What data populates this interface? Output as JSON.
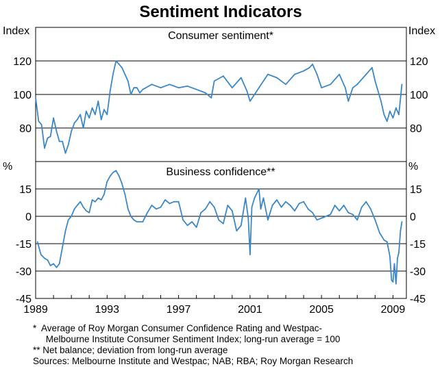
{
  "title": "Sentiment Indicators",
  "styles": {
    "line_color": "#3a87c8",
    "frame_color": "#000000",
    "background": "#ffffff"
  },
  "chart_data": [
    {
      "type": "line",
      "title": "Consumer sentiment*",
      "ylabel_left": "Index",
      "ylabel_right": "Index",
      "ylim": [
        60,
        140
      ],
      "yticks": [
        80,
        100,
        120
      ],
      "xlim": [
        1989,
        2009.75
      ],
      "series": [
        {
          "name": "Consumer sentiment",
          "x": [
            1989.0,
            1989.17,
            1989.33,
            1989.5,
            1989.67,
            1989.83,
            1990.0,
            1990.17,
            1990.33,
            1990.5,
            1990.67,
            1990.83,
            1991.0,
            1991.17,
            1991.33,
            1991.5,
            1991.67,
            1991.83,
            1992.0,
            1992.17,
            1992.33,
            1992.5,
            1992.67,
            1992.83,
            1993.0,
            1993.17,
            1993.33,
            1993.5,
            1993.67,
            1993.83,
            1994.0,
            1994.17,
            1994.33,
            1994.5,
            1994.67,
            1994.83,
            1995.0,
            1995.5,
            1996.0,
            1996.5,
            1997.0,
            1997.5,
            1998.0,
            1998.5,
            1998.83,
            1999.0,
            1999.5,
            2000.0,
            2000.5,
            2000.83,
            2001.0,
            2001.5,
            2002.0,
            2002.5,
            2003.0,
            2003.5,
            2004.0,
            2004.33,
            2004.5,
            2004.75,
            2005.0,
            2005.5,
            2006.0,
            2006.33,
            2006.5,
            2006.75,
            2007.0,
            2007.5,
            2007.83,
            2008.0,
            2008.33,
            2008.5,
            2008.67,
            2008.83,
            2009.0,
            2009.17,
            2009.33,
            2009.5
          ],
          "values": [
            98,
            84,
            82,
            68,
            74,
            75,
            86,
            78,
            72,
            72,
            65,
            70,
            78,
            83,
            85,
            88,
            80,
            90,
            86,
            92,
            88,
            96,
            85,
            91,
            88,
            102,
            112,
            120,
            118,
            116,
            112,
            108,
            100,
            104,
            104,
            101,
            103,
            106,
            104,
            106,
            104,
            105,
            103,
            101,
            98,
            108,
            111,
            104,
            110,
            102,
            96,
            104,
            112,
            110,
            106,
            112,
            114,
            116,
            118,
            112,
            104,
            106,
            112,
            104,
            96,
            104,
            106,
            112,
            116,
            108,
            96,
            88,
            84,
            90,
            86,
            92,
            88,
            106
          ]
        }
      ]
    },
    {
      "type": "line",
      "title": "Business confidence**",
      "ylabel_left": "%",
      "ylabel_right": "%",
      "ylim": [
        -45,
        30
      ],
      "yticks": [
        -45,
        -30,
        -15,
        0,
        15
      ],
      "xlim": [
        1989,
        2009.75
      ],
      "xticks": [
        "1989",
        "1993",
        "1997",
        "2001",
        "2005",
        "2009"
      ],
      "xtick_values": [
        1989,
        1993,
        1997,
        2001,
        2005,
        2009
      ],
      "series": [
        {
          "name": "Business confidence",
          "x": [
            1989.1,
            1989.3,
            1989.5,
            1989.67,
            1989.83,
            1990.0,
            1990.17,
            1990.33,
            1990.5,
            1990.67,
            1990.83,
            1991.0,
            1991.17,
            1991.33,
            1991.5,
            1991.67,
            1991.83,
            1992.0,
            1992.17,
            1992.33,
            1992.5,
            1992.67,
            1992.83,
            1993.0,
            1993.17,
            1993.33,
            1993.5,
            1993.67,
            1993.83,
            1994.0,
            1994.17,
            1994.33,
            1994.5,
            1994.67,
            1994.83,
            1995.0,
            1995.25,
            1995.5,
            1995.75,
            1996.0,
            1996.25,
            1996.5,
            1996.75,
            1997.0,
            1997.25,
            1997.5,
            1997.75,
            1998.0,
            1998.25,
            1998.5,
            1998.75,
            1999.0,
            1999.25,
            1999.5,
            1999.75,
            2000.0,
            2000.25,
            2000.5,
            2000.75,
            2000.9,
            2001.0,
            2001.1,
            2001.25,
            2001.5,
            2001.6,
            2001.75,
            2002.0,
            2002.25,
            2002.5,
            2002.75,
            2003.0,
            2003.25,
            2003.5,
            2003.75,
            2004.0,
            2004.25,
            2004.5,
            2004.75,
            2005.0,
            2005.25,
            2005.5,
            2005.75,
            2006.0,
            2006.25,
            2006.5,
            2006.75,
            2007.0,
            2007.25,
            2007.5,
            2007.75,
            2008.0,
            2008.25,
            2008.5,
            2008.67,
            2008.83,
            2008.92,
            2009.0,
            2009.08,
            2009.17,
            2009.25,
            2009.33,
            2009.42,
            2009.5
          ],
          "values": [
            -14,
            -21,
            -23,
            -24,
            -27,
            -26,
            -28,
            -26,
            -17,
            -8,
            -2,
            0,
            4,
            6,
            8,
            5,
            3,
            2,
            9,
            8,
            10,
            9,
            12,
            19,
            22,
            24,
            25,
            22,
            18,
            12,
            4,
            0,
            -2,
            -3,
            -3,
            -3,
            2,
            6,
            4,
            5,
            9,
            7,
            8,
            8,
            -2,
            -5,
            -3,
            -6,
            2,
            4,
            8,
            5,
            -2,
            -4,
            6,
            3,
            -8,
            -5,
            10,
            -1,
            -21,
            5,
            10,
            15,
            4,
            10,
            -2,
            6,
            9,
            5,
            8,
            6,
            3,
            7,
            8,
            4,
            2,
            -2,
            -1,
            0,
            1,
            6,
            3,
            6,
            2,
            1,
            -2,
            5,
            8,
            4,
            -2,
            -9,
            -13,
            -14,
            -22,
            -35,
            -36,
            -26,
            -37,
            -23,
            -20,
            -8,
            -3
          ]
        }
      ]
    }
  ],
  "notes": [
    "*  Average of Roy Morgan Consumer Confidence Rating and Westpac-",
    "     Melbourne Institute Consumer Sentiment Index; long-run average = 100",
    "** Net balance; deviation from long-run average",
    "Sources: Melbourne Institute and Westpac; NAB; RBA; Roy Morgan Research"
  ]
}
